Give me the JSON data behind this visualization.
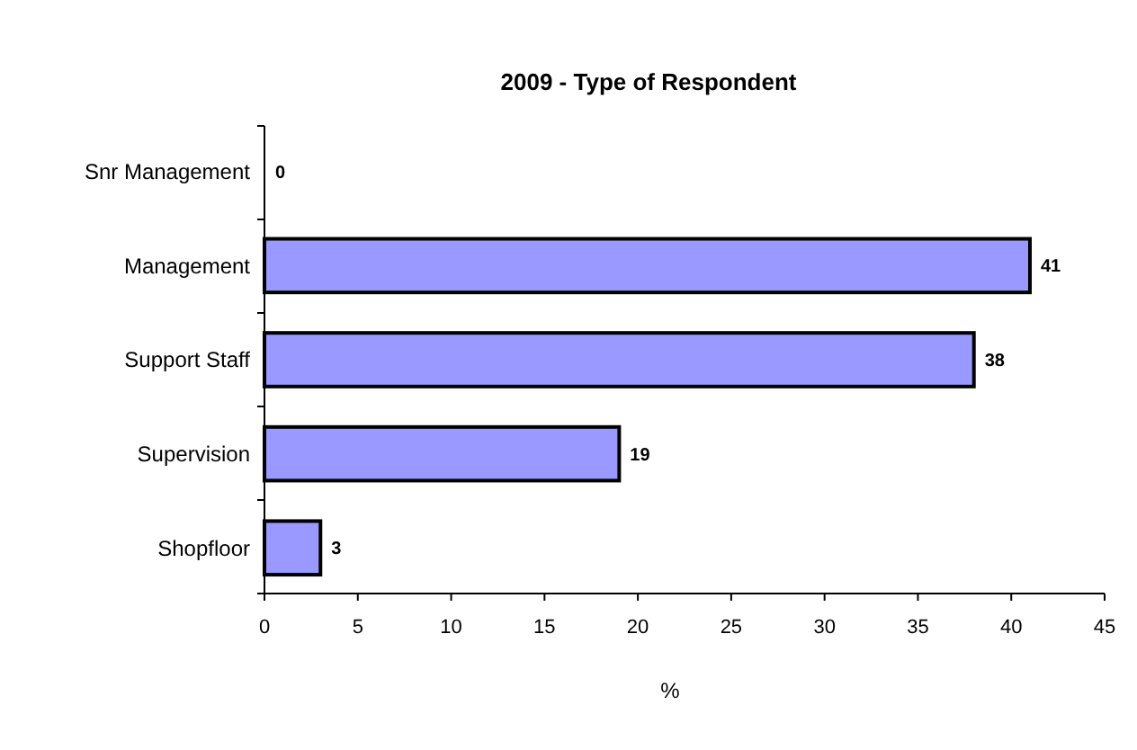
{
  "chart_data": {
    "type": "bar",
    "title": "2009 - Type of Respondent",
    "xlabel": "%",
    "orientation": "horizontal",
    "categories": [
      "Snr Management",
      "Management",
      "Support Staff",
      "Supervision",
      "Shopfloor"
    ],
    "values": [
      0,
      41,
      38,
      19,
      3
    ],
    "color": "#9999ff",
    "data_labels": true,
    "xlim": [
      0,
      45
    ],
    "xticks": [
      0,
      5,
      10,
      15,
      20,
      25,
      30,
      35,
      40,
      45
    ]
  }
}
